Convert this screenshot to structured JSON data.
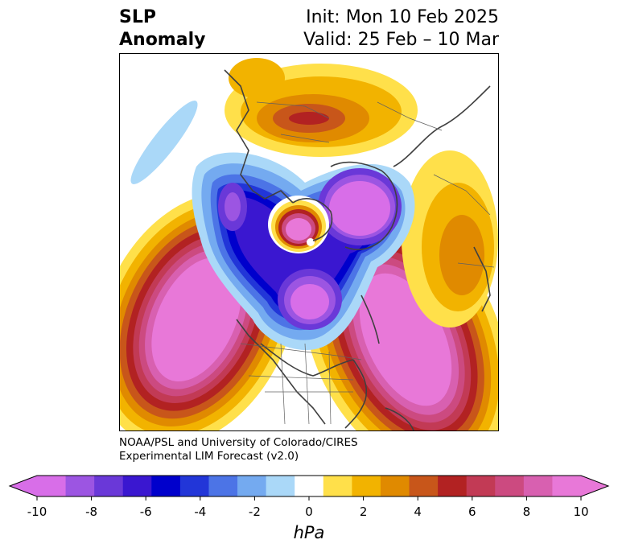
{
  "title": {
    "left_line1": "SLP",
    "left_line2": "Anomaly",
    "right_line1": "Init: Mon 10 Feb 2025",
    "right_line2": "Valid: 25 Feb – 10 Mar"
  },
  "credit": {
    "line1": "NOAA/PSL and University of Colorado/CIRES",
    "line2": "Experimental LIM Forecast (v2.0)"
  },
  "colorbar": {
    "unit": "hPa",
    "ticks": [
      "-10",
      "-8",
      "-6",
      "-4",
      "-2",
      "0",
      "2",
      "4",
      "6",
      "8",
      "10"
    ],
    "colors": [
      "#d86ee8",
      "#9c55e2",
      "#6a38d8",
      "#3a17d0",
      "#0000cc",
      "#2236d8",
      "#4c74e6",
      "#74aaf0",
      "#aad8f8",
      "#ffffff",
      "#ffe04a",
      "#f2b300",
      "#e08a00",
      "#c8561a",
      "#b22222",
      "#c23a55",
      "#cc4a80",
      "#d860b0",
      "#e878d8"
    ]
  },
  "map": {
    "regions": [
      {
        "name": "pacific-positive-anomaly",
        "sign": "positive"
      },
      {
        "name": "atlantic-positive-anomaly",
        "sign": "positive"
      },
      {
        "name": "arctic-negative-anomaly",
        "sign": "negative"
      },
      {
        "name": "eurasia-positive-anomaly",
        "sign": "positive"
      }
    ]
  }
}
